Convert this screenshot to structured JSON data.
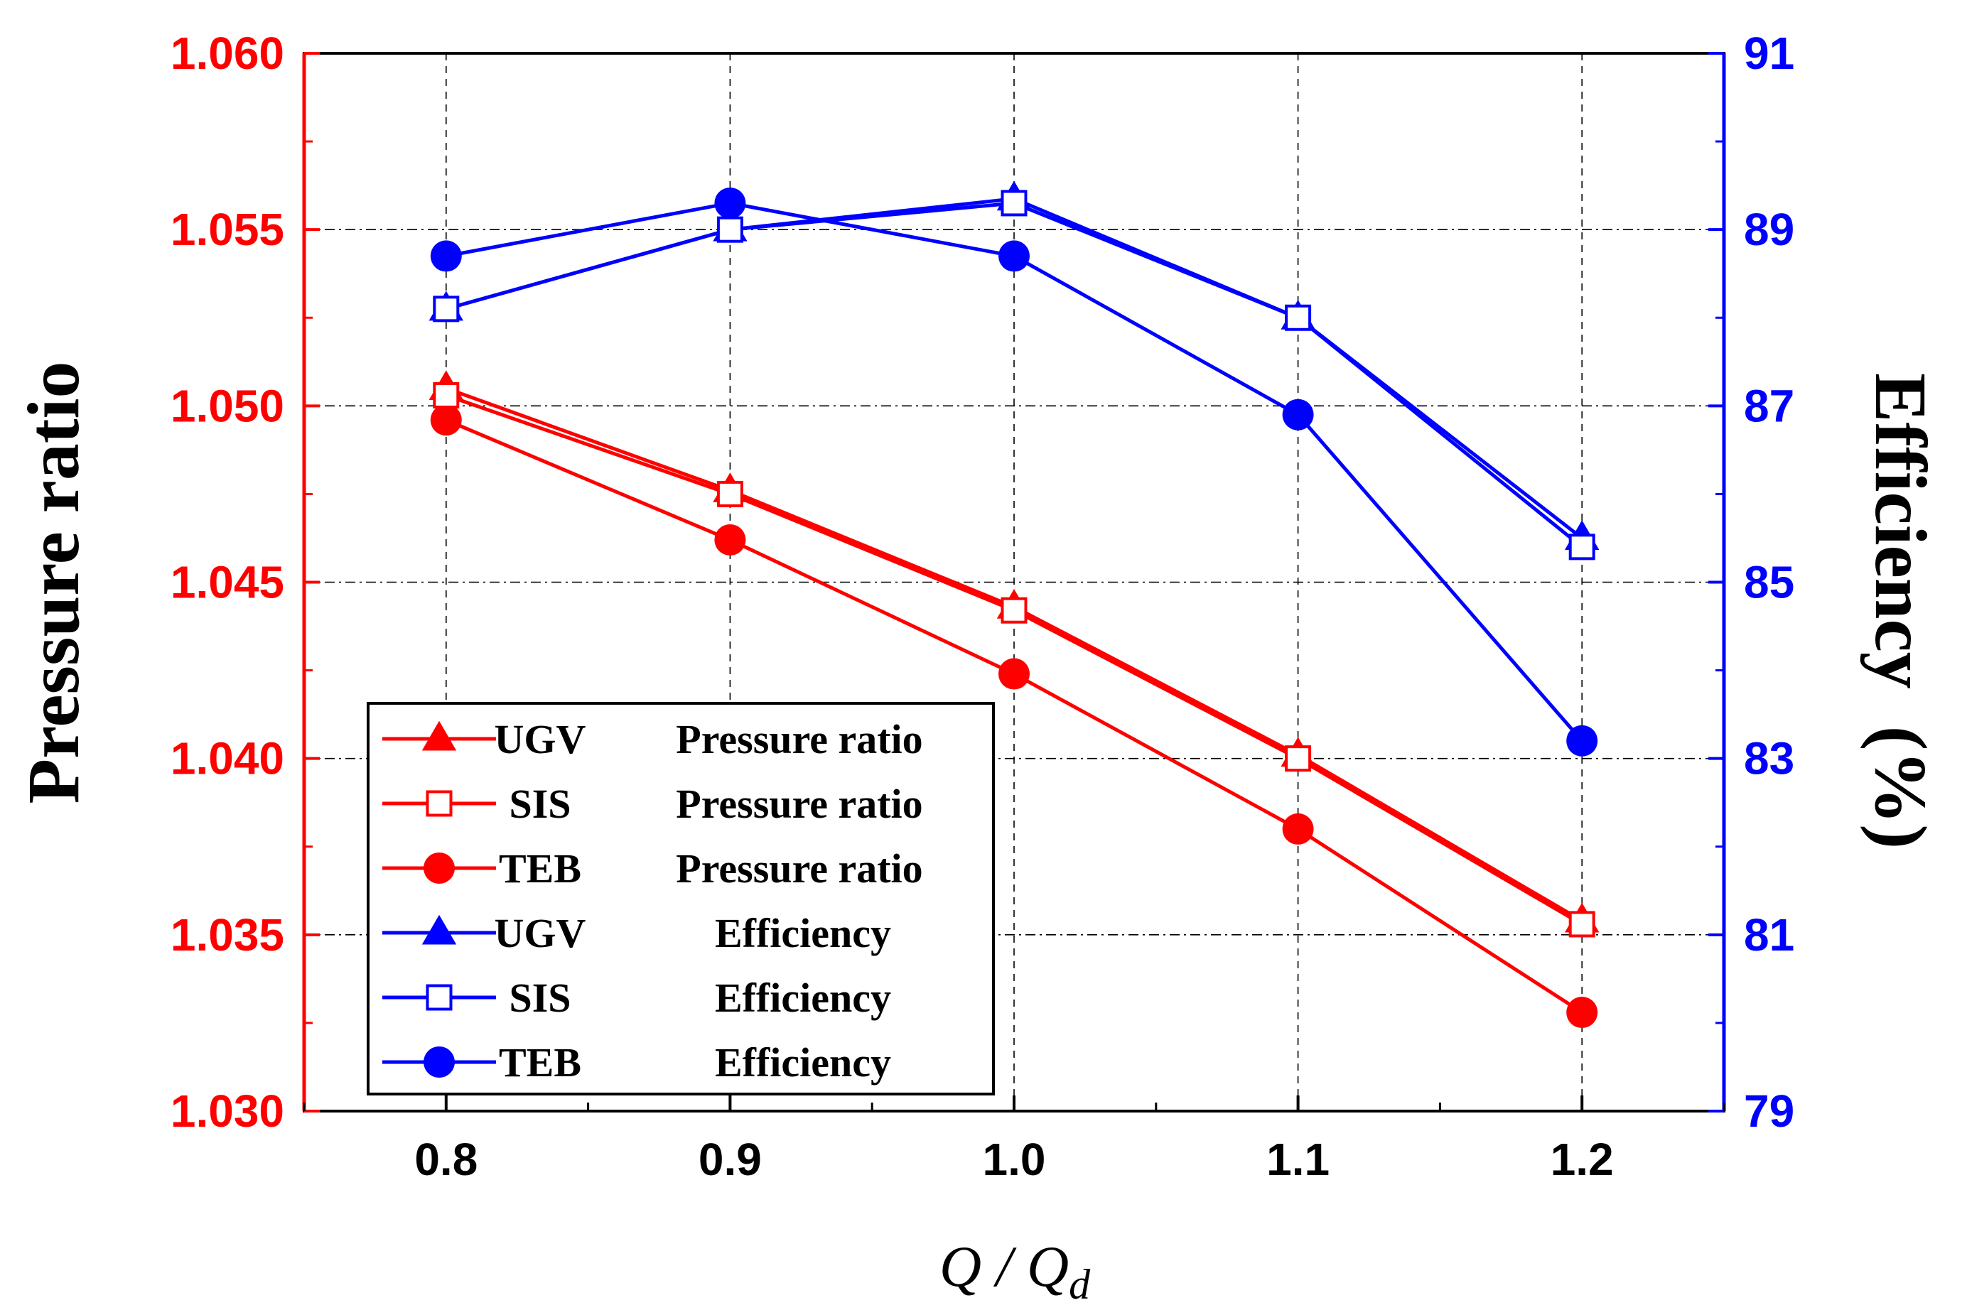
{
  "chart_data": {
    "type": "line",
    "x": [
      0.8,
      0.9,
      1.0,
      1.1,
      1.2
    ],
    "x_tick_labels": [
      "0.8",
      "0.9",
      "1.0",
      "1.1",
      "1.2"
    ],
    "xlim": [
      0.75,
      1.25
    ],
    "xlabel": {
      "main": "Q",
      "sep": " / ",
      "base": "Q",
      "sub": "d"
    },
    "left_axis": {
      "label": "Pressure ratio",
      "color": "#ff0000",
      "ylim": [
        1.03,
        1.06
      ],
      "ticks": [
        1.03,
        1.035,
        1.04,
        1.045,
        1.05,
        1.055,
        1.06
      ],
      "tick_labels": [
        "1.030",
        "1.035",
        "1.040",
        "1.045",
        "1.050",
        "1.055",
        "1.060"
      ]
    },
    "right_axis": {
      "label": "Efficiency  (%)",
      "color": "#0000ff",
      "ylim": [
        79,
        91
      ],
      "ticks": [
        79,
        81,
        83,
        85,
        87,
        89,
        91
      ],
      "tick_labels": [
        "79",
        "81",
        "83",
        "85",
        "87",
        "89",
        "91"
      ]
    },
    "grid": true,
    "series": [
      {
        "name": "UGV Pressure ratio",
        "legend_case": "UGV",
        "legend_quantity": "Pressure ratio",
        "axis": "left",
        "marker": "triangle",
        "color": "#ff0000",
        "values": [
          1.0505,
          1.0476,
          1.0443,
          1.0401,
          1.0354
        ]
      },
      {
        "name": "SIS Pressure ratio",
        "legend_case": "SIS",
        "legend_quantity": "Pressure ratio",
        "axis": "left",
        "marker": "square-open",
        "color": "#ff0000",
        "values": [
          1.0503,
          1.0475,
          1.0442,
          1.04,
          1.0353
        ]
      },
      {
        "name": "TEB Pressure ratio",
        "legend_case": "TEB",
        "legend_quantity": "Pressure ratio",
        "axis": "left",
        "marker": "circle",
        "color": "#ff0000",
        "values": [
          1.0496,
          1.0462,
          1.0424,
          1.038,
          1.0328
        ]
      },
      {
        "name": "UGV Efficiency",
        "legend_case": "UGV",
        "legend_quantity": "Efficiency",
        "axis": "right",
        "marker": "triangle",
        "color": "#0000ff",
        "values": [
          88.1,
          89.0,
          89.35,
          88.0,
          85.5
        ]
      },
      {
        "name": "SIS Efficiency",
        "legend_case": "SIS",
        "legend_quantity": "Efficiency",
        "axis": "right",
        "marker": "square-open",
        "color": "#0000ff",
        "values": [
          88.1,
          89.0,
          89.3,
          88.0,
          85.4
        ]
      },
      {
        "name": "TEB Efficiency",
        "legend_case": "TEB",
        "legend_quantity": "Efficiency",
        "axis": "right",
        "marker": "circle",
        "color": "#0000ff",
        "values": [
          88.7,
          89.3,
          88.7,
          86.9,
          83.2
        ]
      }
    ],
    "legend_position": "bottom-left"
  }
}
